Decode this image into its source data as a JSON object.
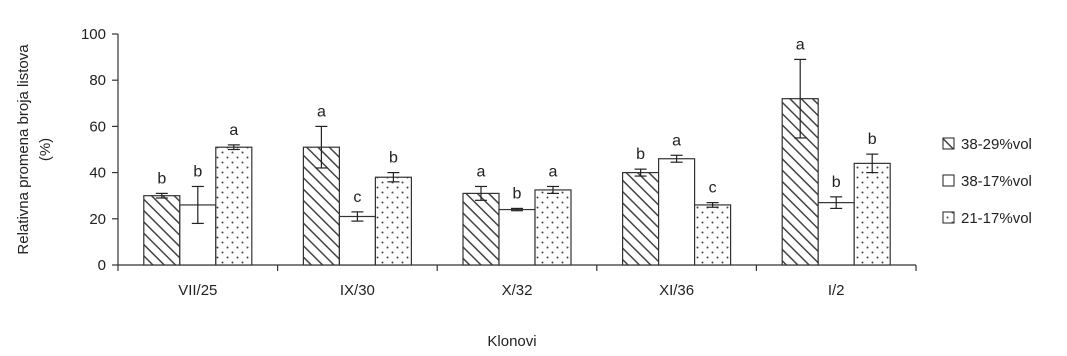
{
  "chart_data": {
    "type": "bar",
    "categories": [
      "VII/25",
      "IX/30",
      "X/32",
      "XI/36",
      "I/2"
    ],
    "ylabel_lines": [
      "Relativna promena broja listova",
      "(%)"
    ],
    "xlabel": "Klonovi",
    "ylim": [
      0,
      100
    ],
    "yticks": [
      0,
      20,
      40,
      60,
      80,
      100
    ],
    "grid": false,
    "legend_position": "right",
    "series": [
      {
        "name": "38-29%vol",
        "pattern": "diagonal-hatch",
        "values": [
          30,
          51,
          31,
          40,
          72
        ],
        "errors": [
          1,
          9,
          3,
          1.5,
          17
        ],
        "letters": [
          "b",
          "a",
          "a",
          "b",
          "a"
        ]
      },
      {
        "name": "38-17%vol",
        "pattern": "none",
        "values": [
          26,
          21,
          24,
          46,
          27
        ],
        "errors": [
          8,
          2,
          0.5,
          1.5,
          2.5
        ],
        "letters": [
          "b",
          "c",
          "b",
          "a",
          "b"
        ]
      },
      {
        "name": "21-17%vol",
        "pattern": "dots",
        "values": [
          51,
          38,
          32.5,
          26,
          44
        ],
        "errors": [
          1,
          2,
          1.5,
          1,
          4
        ],
        "letters": [
          "a",
          "b",
          "a",
          "c",
          "b"
        ]
      }
    ]
  }
}
